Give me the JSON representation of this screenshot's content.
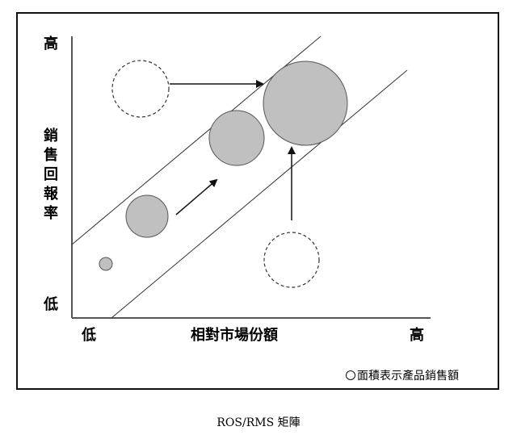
{
  "axes": {
    "y_high": "高",
    "y_low": "低",
    "y_title_chars": [
      "銷",
      "售",
      "回",
      "報",
      "率"
    ],
    "x_low": "低",
    "x_title": "相對市場份額",
    "x_high": "高"
  },
  "note": "面積表示產品銷售額",
  "caption": "ROS/RMS 矩陣"
}
